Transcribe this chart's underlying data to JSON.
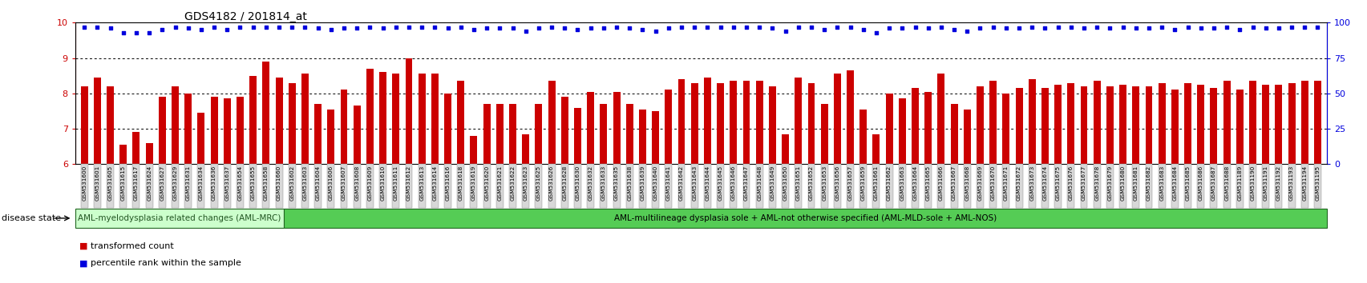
{
  "title": "GDS4182 / 201814_at",
  "ylim_left": [
    6,
    10
  ],
  "ylim_right": [
    0,
    100
  ],
  "yticks_left": [
    6,
    7,
    8,
    9,
    10
  ],
  "yticks_right": [
    0,
    25,
    50,
    75,
    100
  ],
  "bar_color": "#CC0000",
  "dot_color": "#0000DD",
  "background_color": "#ffffff",
  "gridline_color": "#000000",
  "categories": [
    "GSM531600",
    "GSM531601",
    "GSM531605",
    "GSM531615",
    "GSM531617",
    "GSM531624",
    "GSM531627",
    "GSM531629",
    "GSM531631",
    "GSM531634",
    "GSM531636",
    "GSM531637",
    "GSM531654",
    "GSM531655",
    "GSM531658",
    "GSM531660",
    "GSM531602",
    "GSM531603",
    "GSM531604",
    "GSM531606",
    "GSM531607",
    "GSM531608",
    "GSM531609",
    "GSM531610",
    "GSM531611",
    "GSM531612",
    "GSM531613",
    "GSM531614",
    "GSM531616",
    "GSM531618",
    "GSM531619",
    "GSM531620",
    "GSM531621",
    "GSM531622",
    "GSM531623",
    "GSM531625",
    "GSM531626",
    "GSM531628",
    "GSM531630",
    "GSM531632",
    "GSM531633",
    "GSM531635",
    "GSM531638",
    "GSM531639",
    "GSM531640",
    "GSM531641",
    "GSM531642",
    "GSM531643",
    "GSM531644",
    "GSM531645",
    "GSM531646",
    "GSM531647",
    "GSM531648",
    "GSM531649",
    "GSM531650",
    "GSM531651",
    "GSM531652",
    "GSM531653",
    "GSM531656",
    "GSM531657",
    "GSM531659",
    "GSM531661",
    "GSM531662",
    "GSM531663",
    "GSM531664",
    "GSM531665",
    "GSM531666",
    "GSM531667",
    "GSM531668",
    "GSM531669",
    "GSM531670",
    "GSM531671",
    "GSM531672",
    "GSM531673",
    "GSM531674",
    "GSM531675",
    "GSM531676",
    "GSM531677",
    "GSM531678",
    "GSM531679",
    "GSM531680",
    "GSM531681",
    "GSM531682",
    "GSM531683",
    "GSM531684",
    "GSM531685",
    "GSM531686",
    "GSM531687",
    "GSM531688",
    "GSM531189",
    "GSM531190",
    "GSM531191",
    "GSM531192",
    "GSM531193",
    "GSM531194",
    "GSM531195"
  ],
  "bar_values": [
    8.2,
    8.45,
    8.2,
    6.55,
    6.9,
    6.6,
    7.9,
    8.2,
    8.0,
    7.45,
    7.9,
    7.85,
    7.9,
    8.5,
    8.9,
    8.45,
    8.3,
    8.55,
    7.7,
    7.55,
    8.1,
    7.65,
    8.7,
    8.6,
    8.55,
    9.0,
    8.55,
    8.55,
    8.0,
    8.35,
    6.8,
    7.7,
    7.7,
    7.7,
    6.85,
    7.7,
    8.35,
    7.9,
    7.6,
    8.05,
    7.7,
    8.05,
    7.7,
    7.55,
    7.5,
    8.1,
    8.4,
    8.3,
    8.45,
    8.3,
    8.35,
    8.35,
    8.35,
    8.2,
    6.85,
    8.45,
    8.3,
    7.7,
    8.55,
    8.65,
    7.55,
    6.85,
    8.0,
    7.85,
    8.15,
    8.05,
    8.55,
    7.7,
    7.55,
    8.2,
    8.35,
    8.0,
    8.15,
    8.4,
    8.15,
    8.25,
    8.3,
    8.2,
    8.35,
    8.2,
    8.25,
    8.2,
    8.2,
    8.3,
    8.1,
    8.3,
    8.25,
    8.15,
    8.35,
    8.1,
    8.35,
    8.25,
    8.25,
    8.3,
    8.35,
    8.35
  ],
  "dot_values": [
    97,
    97,
    96,
    93,
    93,
    93,
    95,
    97,
    96,
    95,
    97,
    95,
    97,
    97,
    97,
    97,
    97,
    97,
    96,
    95,
    96,
    96,
    97,
    96,
    97,
    97,
    97,
    97,
    96,
    97,
    95,
    96,
    96,
    96,
    94,
    96,
    97,
    96,
    95,
    96,
    96,
    97,
    96,
    95,
    94,
    96,
    97,
    97,
    97,
    97,
    97,
    97,
    97,
    96,
    94,
    97,
    97,
    95,
    97,
    97,
    95,
    93,
    96,
    96,
    97,
    96,
    97,
    95,
    94,
    96,
    97,
    96,
    96,
    97,
    96,
    97,
    97,
    96,
    97,
    96,
    97,
    96,
    96,
    97,
    95,
    97,
    96,
    96,
    97,
    95,
    97,
    96,
    96,
    97,
    97,
    97
  ],
  "disease_state_label": "disease state",
  "group1_label": "AML-myelodysplasia related changes (AML-MRC)",
  "group2_label": "AML-multilineage dysplasia sole + AML-not otherwise specified (AML-MLD-sole + AML-NOS)",
  "group1_count": 16,
  "group1_color": "#ccffcc",
  "group2_color": "#55cc55",
  "group_border_color": "#226622",
  "legend_bar_label": "transformed count",
  "legend_dot_label": "percentile rank within the sample"
}
